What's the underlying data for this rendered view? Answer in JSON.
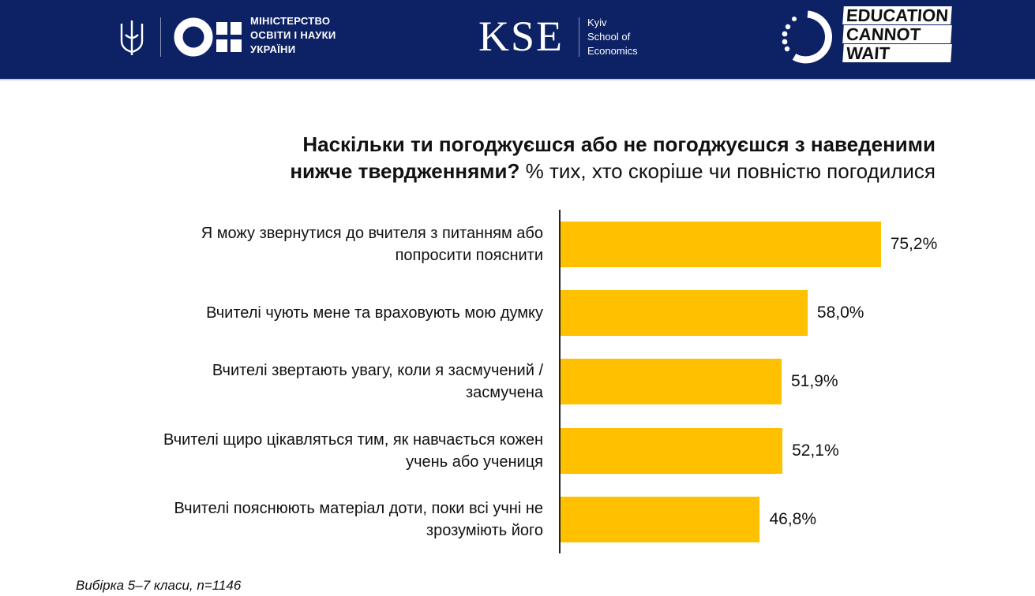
{
  "header": {
    "ministry_lines": [
      "МІНІСТЕРСТВО",
      "ОСВІТИ І НАУКИ",
      "УКРАЇНИ"
    ],
    "kse_logo": "KSE",
    "kse_sub_lines": [
      "Kyiv",
      "School of",
      "Economics"
    ],
    "ecw_words": [
      "EDUCATION",
      "CANNOT",
      "WAIT"
    ]
  },
  "colors": {
    "header_bg": "#0d2265",
    "bar": "#ffc000"
  },
  "chart_data": {
    "type": "bar",
    "orientation": "horizontal",
    "title": "Наскільки ти погоджуєшся або не погоджуєшся з наведеними нижче твердженнями?",
    "subtitle": "% тих, хто скоріше чи повністю погодилися",
    "categories": [
      "Я можу звернутися до вчителя з питанням або попросити пояснити",
      "Вчителі чують мене та враховують мою думку",
      "Вчителі звертають увагу, коли я засмучений / засмучена",
      "Вчителі щиро цікавляться тим, як навчається кожен учень або учениця",
      "Вчителі пояснюють матеріал доти, поки всі учні не зрозуміють його"
    ],
    "values": [
      75.2,
      58.0,
      51.9,
      52.1,
      46.8
    ],
    "value_labels": [
      "75,2%",
      "58,0%",
      "51,9%",
      "52,1%",
      "46,8%"
    ],
    "xlim": [
      0,
      100
    ]
  },
  "footnote": "Вибірка 5–7 класи, n=1146"
}
